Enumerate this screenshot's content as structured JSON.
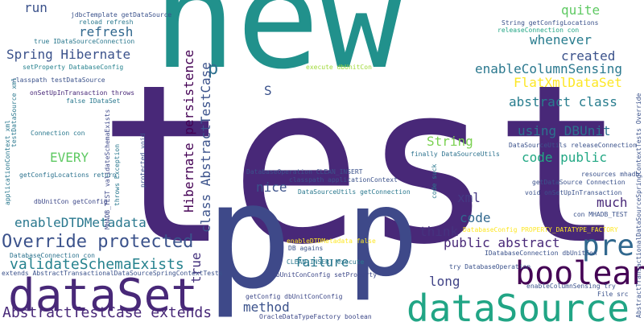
{
  "words": [
    {
      "text": "new",
      "color": "#21918c"
    },
    {
      "text": "test",
      "color": "#482878"
    },
    {
      "text": "p",
      "color": "#3e4989"
    },
    {
      "text": "p",
      "color": "#3e4989"
    },
    {
      "text": "dataSet",
      "color": "#482878"
    },
    {
      "text": "dataSource",
      "color": "#21a585"
    },
    {
      "text": "boolean",
      "color": "#440154"
    },
    {
      "text": "pre",
      "color": "#31688e"
    },
    {
      "text": "Override protected",
      "color": "#3b528b"
    },
    {
      "text": "AbstractTestCase extends",
      "color": "#482878"
    },
    {
      "text": "validateSchemaExists",
      "color": "#26828e"
    },
    {
      "text": "enableDTDMetadata",
      "color": "#2a788e"
    },
    {
      "text": "Spring Hibernate",
      "color": "#3b528b"
    },
    {
      "text": "refresh",
      "color": "#31688e"
    },
    {
      "text": "run",
      "color": "#3b528b"
    },
    {
      "text": "quite",
      "color": "#5ec962"
    },
    {
      "text": "whenever",
      "color": "#287c8e"
    },
    {
      "text": "enableColumnSensing",
      "color": "#2a788e"
    },
    {
      "text": "created",
      "color": "#3b528b"
    },
    {
      "text": "FlatXmlDataSet",
      "color": "#fde725"
    },
    {
      "text": "abstract class",
      "color": "#287d8e"
    },
    {
      "text": "using DBUnit",
      "color": "#2c728e"
    },
    {
      "text": "code public",
      "color": "#22a884"
    },
    {
      "text": "String",
      "color": "#7ad151"
    },
    {
      "text": "EVERY",
      "color": "#5ec962"
    },
    {
      "text": "nice",
      "color": "#3b528b"
    },
    {
      "text": "xml",
      "color": "#443a83"
    },
    {
      "text": "much",
      "color": "#482878"
    },
    {
      "text": "code",
      "color": "#31688e"
    },
    {
      "text": "think",
      "color": "#46337e"
    },
    {
      "text": "public abstract",
      "color": "#482878"
    },
    {
      "text": "failure",
      "color": "#2a788e"
    },
    {
      "text": "long",
      "color": "#414487"
    },
    {
      "text": "method",
      "color": "#3b528b"
    },
    {
      "text": "S",
      "color": "#3b528b"
    },
    {
      "text": "p",
      "color": "#2d708e"
    },
    {
      "text": "true",
      "color": "#46337e"
    },
    {
      "text": "Hibernate persistence",
      "color": "#440154"
    },
    {
      "text": "class AbstractTestCase",
      "color": "#3b528b"
    },
    {
      "text": "jdbcTemplate getDataSource",
      "color": "#3b528b"
    },
    {
      "text": "reload refresh",
      "color": "#2a788e"
    },
    {
      "text": "true IDataSourceConnection",
      "color": "#2a788e"
    },
    {
      "text": "setProperty DatabaseConfig",
      "color": "#26828e"
    },
    {
      "text": "classpath testDataSource",
      "color": "#3b528b"
    },
    {
      "text": "onSetUpInTransaction throws",
      "color": "#482878"
    },
    {
      "text": "false IDataSet",
      "color": "#2a788e"
    },
    {
      "text": "execute dbUnitCon",
      "color": "#a0da39"
    },
    {
      "text": "String getConfigLocations",
      "color": "#3b528b"
    },
    {
      "text": "releaseConnection con",
      "color": "#21a585"
    },
    {
      "text": "Connection con",
      "color": "#2a788e"
    },
    {
      "text": "getConfigLocations return",
      "color": "#2c728e"
    },
    {
      "text": "dbUnitCon getConfig",
      "color": "#3e4989"
    },
    {
      "text": "DatabaseConnection con",
      "color": "#2c728e"
    },
    {
      "text": "extends AbstractTransactionalDataSourceSpringContextTests",
      "color": "#3b528b"
    },
    {
      "text": "DatabaseOperation CLEAN_INSERT",
      "color": "#3b528b"
    },
    {
      "text": "classpath applicationContext",
      "color": "#3b528b"
    },
    {
      "text": "DB agains",
      "color": "#3b528b"
    },
    {
      "text": "DataSourceUtils getConnection",
      "color": "#2a788e"
    },
    {
      "text": "enableDTDMetadata false",
      "color": "#fde725"
    },
    {
      "text": "CLEAN_INSERT execute",
      "color": "#2a788e"
    },
    {
      "text": "dbUnitConConfig setProperty",
      "color": "#3e4989"
    },
    {
      "text": "getConfig dbUnitConConfig",
      "color": "#3e4989"
    },
    {
      "text": "OracleDataTypeFactory boolean",
      "color": "#3e4989"
    },
    {
      "text": "finally DataSourceUtils",
      "color": "#2c728e"
    },
    {
      "text": "DataSourceUtils releaseConnection",
      "color": "#3b528b"
    },
    {
      "text": "resources mhadb",
      "color": "#3b528b"
    },
    {
      "text": "getDataSource Connection",
      "color": "#3b528b"
    },
    {
      "text": "void onSetUpInTransaction",
      "color": "#3b528b"
    },
    {
      "text": "con MHADB_TEST",
      "color": "#3b528b"
    },
    {
      "text": "DatabaseConfig PROPERTY_DATATYPE_FACTORY",
      "color": "#fde725"
    },
    {
      "text": "IDatabaseConnection dbUnitCon",
      "color": "#3b528b"
    },
    {
      "text": "try DatabaseOperation",
      "color": "#3b528b"
    },
    {
      "text": "enableColumnSensing try",
      "color": "#3b528b"
    },
    {
      "text": "File src",
      "color": "#3b528b"
    },
    {
      "text": "testDataSource xml",
      "color": "#2a788e"
    },
    {
      "text": "applicationContext xml",
      "color": "#2a788e"
    },
    {
      "text": "MHADB_TEST validateSchemaExists",
      "color": "#3e4989"
    },
    {
      "text": "throws Exception",
      "color": "#2a788e"
    },
    {
      "text": "protected void",
      "color": "#3b528b"
    },
    {
      "text": "code suck",
      "color": "#2a788e"
    },
    {
      "text": "AbstractTransactionalDataSourceSpringContextTests Override",
      "color": "#3b528b"
    }
  ]
}
